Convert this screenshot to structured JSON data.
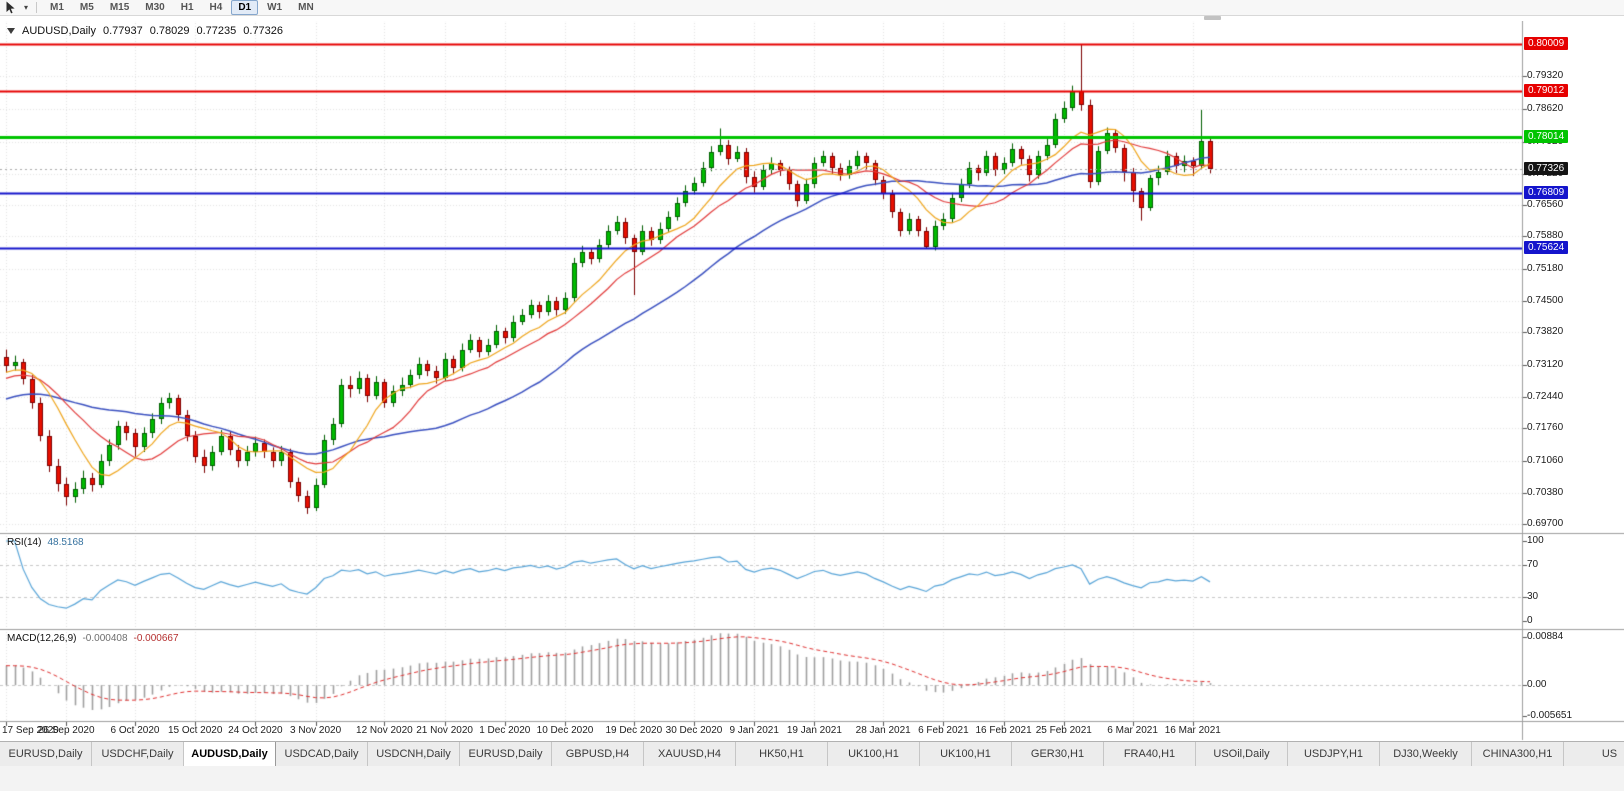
{
  "toolbar": {
    "timeframes": [
      "M1",
      "M5",
      "M15",
      "M30",
      "H1",
      "H4",
      "D1",
      "W1",
      "MN"
    ],
    "active_timeframe": "D1"
  },
  "chart": {
    "title": {
      "symbol_period": "AUDUSD,Daily",
      "open": "0.77937",
      "high": "0.78029",
      "low": "0.77235",
      "close": "0.77326"
    },
    "price_scale_ticks": [
      "0.79320",
      "0.78620",
      "0.77920",
      "0.77220",
      "0.76560",
      "0.75880",
      "0.75180",
      "0.74500",
      "0.73820",
      "0.73120",
      "0.72440",
      "0.71760",
      "0.71060",
      "0.70380",
      "0.69700"
    ],
    "price_domain": {
      "top": 0.8053,
      "bottom": 0.6951
    },
    "hlines": [
      {
        "price": 0.80009,
        "label": "0.80009",
        "color": "#e60000",
        "width": 2
      },
      {
        "price": 0.79012,
        "label": "0.79012",
        "color": "#e60000",
        "width": 2
      },
      {
        "price": 0.78014,
        "label": "0.78014",
        "color": "#00c400",
        "width": 3
      },
      {
        "price": 0.76809,
        "label": "0.76809",
        "color": "#1414cc",
        "width": 2
      },
      {
        "price": 0.75624,
        "label": "0.75624",
        "color": "#1414cc",
        "width": 2
      }
    ],
    "current_price": {
      "value": 0.77326,
      "label": "0.77326",
      "bg": "#141414"
    },
    "indicators": {
      "ma_fast": {
        "period": 8,
        "color": "#efa51b"
      },
      "ma_mid": {
        "period": 13,
        "color": "#e23b3b"
      },
      "ma_slow": {
        "period": 30,
        "color": "#3a50c0"
      }
    },
    "colors": {
      "bull_fill": "#00bb00",
      "bull_border": "#005e00",
      "bear_fill": "#e80f00",
      "bear_border": "#7c0000",
      "grid": "#e4e4e4",
      "separator": "#9e9e9e",
      "scale_tick": "#555555",
      "current_line": "#aaaaaa"
    },
    "candles": [
      [
        0.733,
        0.7345,
        0.7295,
        0.731
      ],
      [
        0.731,
        0.7332,
        0.73,
        0.7318
      ],
      [
        0.7318,
        0.7325,
        0.727,
        0.7282
      ],
      [
        0.7282,
        0.729,
        0.7218,
        0.723
      ],
      [
        0.723,
        0.7242,
        0.7148,
        0.716
      ],
      [
        0.716,
        0.7172,
        0.7082,
        0.7095
      ],
      [
        0.7095,
        0.711,
        0.704,
        0.7056
      ],
      [
        0.7056,
        0.707,
        0.701,
        0.7028
      ],
      [
        0.7028,
        0.706,
        0.7016,
        0.7045
      ],
      [
        0.7045,
        0.7085,
        0.7035,
        0.707
      ],
      [
        0.707,
        0.708,
        0.704,
        0.7055
      ],
      [
        0.7055,
        0.712,
        0.7048,
        0.7105
      ],
      [
        0.7105,
        0.7152,
        0.7095,
        0.714
      ],
      [
        0.714,
        0.7192,
        0.713,
        0.718
      ],
      [
        0.718,
        0.719,
        0.715,
        0.7165
      ],
      [
        0.7165,
        0.7175,
        0.7115,
        0.7135
      ],
      [
        0.7135,
        0.7178,
        0.7125,
        0.7165
      ],
      [
        0.7165,
        0.7208,
        0.7155,
        0.7195
      ],
      [
        0.7195,
        0.7242,
        0.7185,
        0.723
      ],
      [
        0.723,
        0.7252,
        0.7218,
        0.724
      ],
      [
        0.724,
        0.7248,
        0.7192,
        0.7205
      ],
      [
        0.7205,
        0.7215,
        0.7148,
        0.716
      ],
      [
        0.716,
        0.717,
        0.7102,
        0.7115
      ],
      [
        0.7115,
        0.713,
        0.708,
        0.7095
      ],
      [
        0.7095,
        0.7138,
        0.7085,
        0.7125
      ],
      [
        0.7125,
        0.7172,
        0.7118,
        0.716
      ],
      [
        0.716,
        0.7168,
        0.7118,
        0.713
      ],
      [
        0.713,
        0.714,
        0.7092,
        0.7105
      ],
      [
        0.7105,
        0.7138,
        0.7095,
        0.7125
      ],
      [
        0.7125,
        0.7158,
        0.7115,
        0.7145
      ],
      [
        0.7145,
        0.7152,
        0.7112,
        0.7125
      ],
      [
        0.7125,
        0.7135,
        0.7092,
        0.7105
      ],
      [
        0.7105,
        0.7138,
        0.7095,
        0.7125
      ],
      [
        0.7125,
        0.7132,
        0.7048,
        0.706
      ],
      [
        0.706,
        0.707,
        0.7018,
        0.703
      ],
      [
        0.703,
        0.7042,
        0.6992,
        0.7005
      ],
      [
        0.7005,
        0.7068,
        0.6998,
        0.7055
      ],
      [
        0.7055,
        0.7162,
        0.7048,
        0.715
      ],
      [
        0.715,
        0.7198,
        0.714,
        0.7185
      ],
      [
        0.7185,
        0.7282,
        0.7178,
        0.727
      ],
      [
        0.727,
        0.7288,
        0.7242,
        0.726
      ],
      [
        0.726,
        0.7298,
        0.725,
        0.7285
      ],
      [
        0.7285,
        0.7292,
        0.7232,
        0.7245
      ],
      [
        0.7245,
        0.7288,
        0.7238,
        0.7275
      ],
      [
        0.7275,
        0.7282,
        0.722,
        0.723
      ],
      [
        0.723,
        0.7268,
        0.7222,
        0.7255
      ],
      [
        0.7255,
        0.7285,
        0.7245,
        0.727
      ],
      [
        0.727,
        0.7302,
        0.7262,
        0.729
      ],
      [
        0.729,
        0.7328,
        0.7282,
        0.7315
      ],
      [
        0.7315,
        0.7322,
        0.7288,
        0.73
      ],
      [
        0.73,
        0.731,
        0.7272,
        0.7285
      ],
      [
        0.7285,
        0.7338,
        0.7278,
        0.7325
      ],
      [
        0.7325,
        0.7332,
        0.7292,
        0.7305
      ],
      [
        0.7305,
        0.7358,
        0.7298,
        0.7345
      ],
      [
        0.7345,
        0.7378,
        0.7338,
        0.7365
      ],
      [
        0.7365,
        0.7372,
        0.7328,
        0.734
      ],
      [
        0.734,
        0.7368,
        0.7332,
        0.7355
      ],
      [
        0.7355,
        0.7398,
        0.7348,
        0.7385
      ],
      [
        0.7385,
        0.7392,
        0.7358,
        0.737
      ],
      [
        0.737,
        0.7418,
        0.7362,
        0.7405
      ],
      [
        0.7405,
        0.7432,
        0.7398,
        0.742
      ],
      [
        0.742,
        0.7452,
        0.7412,
        0.744
      ],
      [
        0.744,
        0.7448,
        0.7412,
        0.7425
      ],
      [
        0.7425,
        0.7462,
        0.7418,
        0.745
      ],
      [
        0.745,
        0.7458,
        0.7418,
        0.743
      ],
      [
        0.743,
        0.7468,
        0.7422,
        0.7455
      ],
      [
        0.7455,
        0.7542,
        0.7448,
        0.753
      ],
      [
        0.753,
        0.7568,
        0.7522,
        0.7555
      ],
      [
        0.7555,
        0.7562,
        0.7528,
        0.754
      ],
      [
        0.754,
        0.7582,
        0.7532,
        0.757
      ],
      [
        0.757,
        0.7612,
        0.7562,
        0.76
      ],
      [
        0.76,
        0.7632,
        0.7592,
        0.762
      ],
      [
        0.762,
        0.7628,
        0.7572,
        0.7585
      ],
      [
        0.7585,
        0.7592,
        0.7462,
        0.7555
      ],
      [
        0.7555,
        0.7612,
        0.7548,
        0.76
      ],
      [
        0.76,
        0.7608,
        0.7568,
        0.758
      ],
      [
        0.758,
        0.7618,
        0.7572,
        0.7605
      ],
      [
        0.7605,
        0.7642,
        0.7598,
        0.763
      ],
      [
        0.763,
        0.7672,
        0.7622,
        0.766
      ],
      [
        0.766,
        0.7698,
        0.7652,
        0.7685
      ],
      [
        0.7685,
        0.7715,
        0.7678,
        0.7702
      ],
      [
        0.7702,
        0.7748,
        0.7695,
        0.7735
      ],
      [
        0.7735,
        0.7782,
        0.7728,
        0.777
      ],
      [
        0.777,
        0.782,
        0.7762,
        0.7785
      ],
      [
        0.7785,
        0.7795,
        0.7742,
        0.7755
      ],
      [
        0.7755,
        0.7782,
        0.7748,
        0.777
      ],
      [
        0.777,
        0.7778,
        0.7702,
        0.7715
      ],
      [
        0.7715,
        0.7728,
        0.7682,
        0.7695
      ],
      [
        0.7695,
        0.7742,
        0.7688,
        0.773
      ],
      [
        0.773,
        0.7758,
        0.7722,
        0.7745
      ],
      [
        0.7745,
        0.7752,
        0.7718,
        0.773
      ],
      [
        0.773,
        0.7738,
        0.7688,
        0.77
      ],
      [
        0.77,
        0.7708,
        0.7652,
        0.7665
      ],
      [
        0.7665,
        0.7712,
        0.7658,
        0.77
      ],
      [
        0.77,
        0.7758,
        0.7692,
        0.7745
      ],
      [
        0.7745,
        0.7772,
        0.7738,
        0.776
      ],
      [
        0.776,
        0.7768,
        0.7722,
        0.7735
      ],
      [
        0.7735,
        0.7745,
        0.7708,
        0.772
      ],
      [
        0.772,
        0.7752,
        0.7712,
        0.774
      ],
      [
        0.774,
        0.7772,
        0.7732,
        0.776
      ],
      [
        0.776,
        0.7768,
        0.7732,
        0.7745
      ],
      [
        0.7745,
        0.7752,
        0.7698,
        0.771
      ],
      [
        0.771,
        0.7718,
        0.7668,
        0.768
      ],
      [
        0.768,
        0.7688,
        0.7628,
        0.764
      ],
      [
        0.764,
        0.7648,
        0.7588,
        0.76
      ],
      [
        0.76,
        0.7638,
        0.7592,
        0.7625
      ],
      [
        0.7625,
        0.7632,
        0.7588,
        0.76
      ],
      [
        0.76,
        0.7608,
        0.7562,
        0.7566
      ],
      [
        0.7566,
        0.7622,
        0.7558,
        0.761
      ],
      [
        0.761,
        0.7638,
        0.7602,
        0.7625
      ],
      [
        0.7625,
        0.7682,
        0.7618,
        0.767
      ],
      [
        0.767,
        0.7712,
        0.7662,
        0.77
      ],
      [
        0.77,
        0.7748,
        0.7692,
        0.7735
      ],
      [
        0.7735,
        0.7742,
        0.7708,
        0.7725
      ],
      [
        0.7725,
        0.7772,
        0.7718,
        0.776
      ],
      [
        0.776,
        0.7768,
        0.7718,
        0.773
      ],
      [
        0.773,
        0.7758,
        0.7722,
        0.7745
      ],
      [
        0.7745,
        0.7788,
        0.7738,
        0.7775
      ],
      [
        0.7775,
        0.7782,
        0.7742,
        0.7755
      ],
      [
        0.7755,
        0.7762,
        0.7706,
        0.772
      ],
      [
        0.772,
        0.7772,
        0.7712,
        0.776
      ],
      [
        0.776,
        0.7798,
        0.7752,
        0.7785
      ],
      [
        0.7785,
        0.7852,
        0.7778,
        0.784
      ],
      [
        0.784,
        0.7878,
        0.7832,
        0.7865
      ],
      [
        0.7865,
        0.7912,
        0.7858,
        0.79
      ],
      [
        0.79,
        0.8,
        0.7858,
        0.787
      ],
      [
        0.787,
        0.7882,
        0.7692,
        0.7706
      ],
      [
        0.7706,
        0.7782,
        0.7698,
        0.7772
      ],
      [
        0.7772,
        0.7822,
        0.7765,
        0.781
      ],
      [
        0.781,
        0.7818,
        0.7768,
        0.7779
      ],
      [
        0.7779,
        0.7786,
        0.7706,
        0.7727
      ],
      [
        0.7727,
        0.7735,
        0.7662,
        0.7685
      ],
      [
        0.7685,
        0.7692,
        0.7622,
        0.765
      ],
      [
        0.765,
        0.772,
        0.7643,
        0.7714
      ],
      [
        0.7714,
        0.774,
        0.7698,
        0.7727
      ],
      [
        0.7727,
        0.7772,
        0.772,
        0.776
      ],
      [
        0.776,
        0.7768,
        0.7724,
        0.774
      ],
      [
        0.774,
        0.7762,
        0.7726,
        0.775
      ],
      [
        0.775,
        0.7758,
        0.7718,
        0.774
      ],
      [
        0.774,
        0.786,
        0.7732,
        0.7794
      ],
      [
        0.77937,
        0.78029,
        0.77235,
        0.77326
      ]
    ]
  },
  "rsi": {
    "name": "RSI(14)",
    "value": "48.5168",
    "period": 14,
    "color": "#59a5d8",
    "level_line_color": "#c8c8c8",
    "levels": [
      "100",
      "70",
      "30",
      "0"
    ]
  },
  "macd": {
    "name": "MACD(12,26,9)",
    "value_main": "-0.000408",
    "value_signal": "-0.000667",
    "fast": 12,
    "slow": 26,
    "signal": 9,
    "hist_color": "#a0a0a0",
    "signal_color": "#e03030",
    "scale_labels": [
      "0.00884",
      "0.00",
      "-0.005651"
    ]
  },
  "dates": [
    {
      "label": "17 Sep 2020",
      "i": 0
    },
    {
      "label": "26 Sep 2020",
      "i": 7
    },
    {
      "label": "6 Oct 2020",
      "i": 15
    },
    {
      "label": "15 Oct 2020",
      "i": 22
    },
    {
      "label": "24 Oct 2020",
      "i": 29
    },
    {
      "label": "3 Nov 2020",
      "i": 36
    },
    {
      "label": "12 Nov 2020",
      "i": 44
    },
    {
      "label": "21 Nov 2020",
      "i": 51
    },
    {
      "label": "1 Dec 2020",
      "i": 58
    },
    {
      "label": "10 Dec 2020",
      "i": 65
    },
    {
      "label": "19 Dec 2020",
      "i": 73
    },
    {
      "label": "30 Dec 2020",
      "i": 80
    },
    {
      "label": "9 Jan 2021",
      "i": 87
    },
    {
      "label": "19 Jan 2021",
      "i": 94
    },
    {
      "label": "28 Jan 2021",
      "i": 102
    },
    {
      "label": "6 Feb 2021",
      "i": 109
    },
    {
      "label": "16 Feb 2021",
      "i": 116
    },
    {
      "label": "25 Feb 2021",
      "i": 123
    },
    {
      "label": "6 Mar 2021",
      "i": 131
    },
    {
      "label": "16 Mar 2021",
      "i": 138
    }
  ],
  "tabs": {
    "active_index": 2,
    "items": [
      "EURUSD,Daily",
      "USDCHF,Daily",
      "AUDUSD,Daily",
      "USDCAD,Daily",
      "USDCNH,Daily",
      "EURUSD,Daily",
      "GBPUSD,H4",
      "XAUUSD,H4",
      "HK50,H1",
      "UK100,H1",
      "UK100,H1",
      "GER30,H1",
      "FRA40,H1",
      "USOil,Daily",
      "USDJPY,H1",
      "DJ30,Weekly",
      "CHINA300,H1",
      "US"
    ]
  }
}
